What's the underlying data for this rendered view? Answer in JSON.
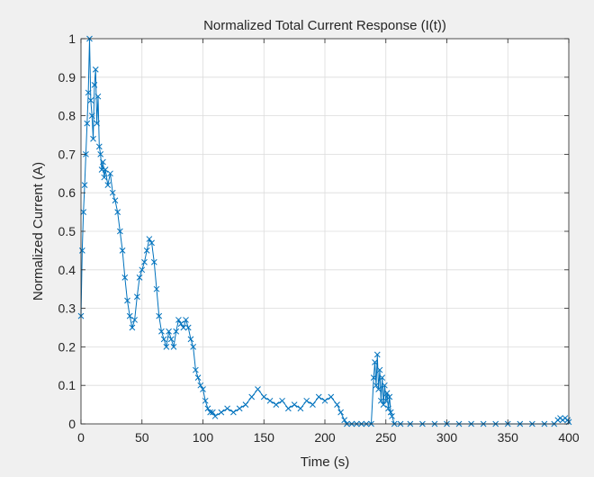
{
  "chart_data": {
    "type": "line",
    "marker": "x",
    "title": "Normalized Total Current Response (I(t))",
    "xlabel": "Time (s)",
    "ylabel": "Normalized Current (A)",
    "xlim": [
      0,
      400
    ],
    "ylim": [
      0,
      1
    ],
    "xticks": [
      0,
      50,
      100,
      150,
      200,
      250,
      300,
      350,
      400
    ],
    "yticks": [
      0,
      0.1,
      0.2,
      0.3,
      0.4,
      0.5,
      0.6,
      0.7,
      0.8,
      0.9,
      1
    ],
    "xtick_labels": [
      "0",
      "50",
      "100",
      "150",
      "200",
      "250",
      "300",
      "350",
      "400"
    ],
    "ytick_labels": [
      "0",
      "0.1",
      "0.2",
      "0.3",
      "0.4",
      "0.5",
      "0.6",
      "0.7",
      "0.8",
      "0.9",
      "1"
    ],
    "grid": true,
    "series": [
      {
        "color": "#0072bd",
        "points": [
          [
            0,
            0.28
          ],
          [
            1,
            0.45
          ],
          [
            2,
            0.55
          ],
          [
            3,
            0.62
          ],
          [
            4,
            0.7
          ],
          [
            5,
            0.78
          ],
          [
            6,
            0.86
          ],
          [
            7,
            1.0
          ],
          [
            8,
            0.84
          ],
          [
            9,
            0.8
          ],
          [
            10,
            0.74
          ],
          [
            11,
            0.88
          ],
          [
            12,
            0.92
          ],
          [
            13,
            0.78
          ],
          [
            14,
            0.85
          ],
          [
            15,
            0.72
          ],
          [
            16,
            0.7
          ],
          [
            17,
            0.66
          ],
          [
            18,
            0.68
          ],
          [
            19,
            0.64
          ],
          [
            20,
            0.66
          ],
          [
            22,
            0.62
          ],
          [
            24,
            0.65
          ],
          [
            26,
            0.6
          ],
          [
            28,
            0.58
          ],
          [
            30,
            0.55
          ],
          [
            32,
            0.5
          ],
          [
            34,
            0.45
          ],
          [
            36,
            0.38
          ],
          [
            38,
            0.32
          ],
          [
            40,
            0.28
          ],
          [
            42,
            0.25
          ],
          [
            44,
            0.27
          ],
          [
            46,
            0.33
          ],
          [
            48,
            0.38
          ],
          [
            50,
            0.4
          ],
          [
            52,
            0.42
          ],
          [
            54,
            0.45
          ],
          [
            56,
            0.48
          ],
          [
            58,
            0.47
          ],
          [
            60,
            0.42
          ],
          [
            62,
            0.35
          ],
          [
            64,
            0.28
          ],
          [
            66,
            0.24
          ],
          [
            68,
            0.22
          ],
          [
            70,
            0.2
          ],
          [
            72,
            0.24
          ],
          [
            74,
            0.22
          ],
          [
            76,
            0.2
          ],
          [
            78,
            0.24
          ],
          [
            80,
            0.27
          ],
          [
            82,
            0.26
          ],
          [
            84,
            0.25
          ],
          [
            86,
            0.27
          ],
          [
            88,
            0.25
          ],
          [
            90,
            0.22
          ],
          [
            92,
            0.2
          ],
          [
            94,
            0.14
          ],
          [
            96,
            0.12
          ],
          [
            98,
            0.1
          ],
          [
            100,
            0.09
          ],
          [
            102,
            0.06
          ],
          [
            104,
            0.04
          ],
          [
            106,
            0.03
          ],
          [
            108,
            0.03
          ],
          [
            110,
            0.02
          ],
          [
            115,
            0.03
          ],
          [
            120,
            0.04
          ],
          [
            125,
            0.03
          ],
          [
            130,
            0.04
          ],
          [
            135,
            0.05
          ],
          [
            140,
            0.07
          ],
          [
            145,
            0.09
          ],
          [
            150,
            0.07
          ],
          [
            155,
            0.06
          ],
          [
            160,
            0.05
          ],
          [
            165,
            0.06
          ],
          [
            170,
            0.04
          ],
          [
            175,
            0.05
          ],
          [
            180,
            0.04
          ],
          [
            185,
            0.06
          ],
          [
            190,
            0.05
          ],
          [
            195,
            0.07
          ],
          [
            200,
            0.06
          ],
          [
            205,
            0.07
          ],
          [
            210,
            0.05
          ],
          [
            213,
            0.03
          ],
          [
            216,
            0.01
          ],
          [
            218,
            0.0
          ],
          [
            222,
            0.0
          ],
          [
            226,
            0.0
          ],
          [
            230,
            0.0
          ],
          [
            234,
            0.0
          ],
          [
            238,
            0.0
          ],
          [
            240,
            0.12
          ],
          [
            241,
            0.16
          ],
          [
            242,
            0.1
          ],
          [
            243,
            0.18
          ],
          [
            244,
            0.09
          ],
          [
            245,
            0.14
          ],
          [
            246,
            0.06
          ],
          [
            247,
            0.12
          ],
          [
            248,
            0.05
          ],
          [
            249,
            0.1
          ],
          [
            250,
            0.06
          ],
          [
            251,
            0.08
          ],
          [
            252,
            0.04
          ],
          [
            253,
            0.07
          ],
          [
            254,
            0.03
          ],
          [
            255,
            0.02
          ],
          [
            257,
            0.0
          ],
          [
            262,
            0.0
          ],
          [
            270,
            0.0
          ],
          [
            280,
            0.0
          ],
          [
            290,
            0.0
          ],
          [
            300,
            0.0
          ],
          [
            310,
            0.0
          ],
          [
            320,
            0.0
          ],
          [
            330,
            0.0
          ],
          [
            340,
            0.0
          ],
          [
            350,
            0.0
          ],
          [
            360,
            0.0
          ],
          [
            370,
            0.0
          ],
          [
            380,
            0.0
          ],
          [
            388,
            0.0
          ],
          [
            391,
            0.01
          ],
          [
            393,
            0.015
          ],
          [
            395,
            0.01
          ],
          [
            397,
            0.015
          ],
          [
            399,
            0.01
          ],
          [
            400,
            0.005
          ]
        ]
      }
    ]
  }
}
